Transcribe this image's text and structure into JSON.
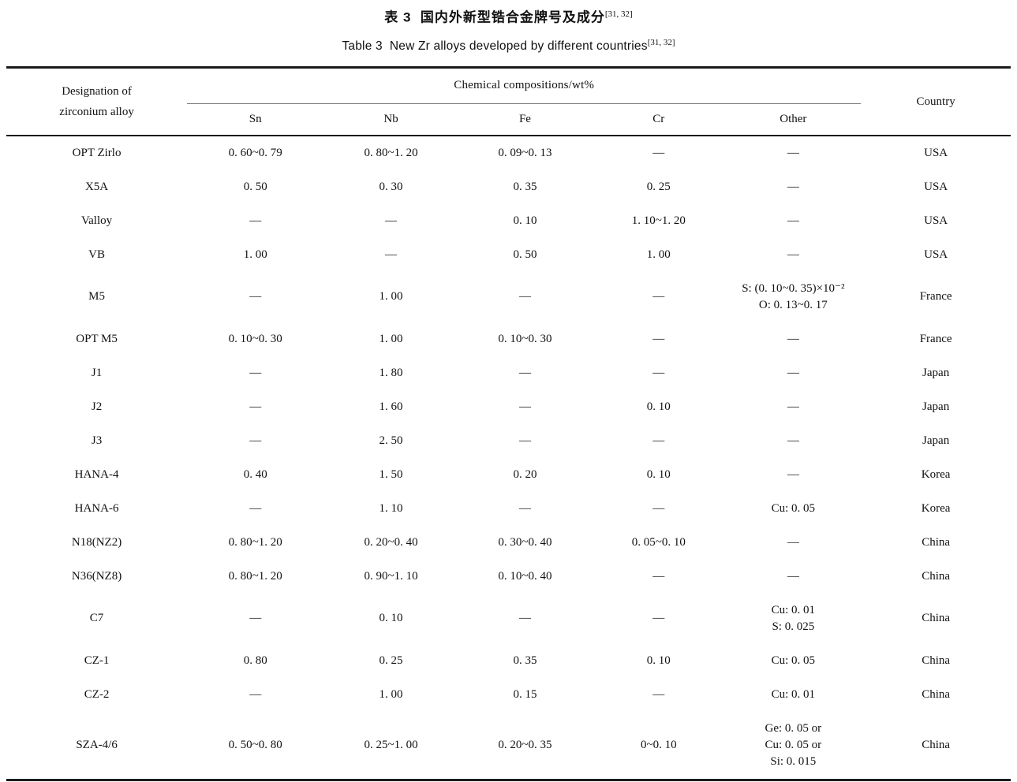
{
  "title": {
    "zh": "表 3  国内外新型锆合金牌号及成分",
    "en": "Table 3  New Zr alloys developed by different countries",
    "ref": "[31, 32]"
  },
  "table": {
    "header": {
      "designation": "Designation of\nzirconium alloy",
      "group": "Chemical compositions/wt%",
      "sub": [
        "Sn",
        "Nb",
        "Fe",
        "Cr",
        "Other"
      ],
      "country": "Country"
    },
    "rows": [
      {
        "designation": "OPT Zirlo",
        "sn": "0. 60~0. 79",
        "nb": "0. 80~1. 20",
        "fe": "0. 09~0. 13",
        "cr": "—",
        "other": "—",
        "country": "USA"
      },
      {
        "designation": "X5A",
        "sn": "0. 50",
        "nb": "0. 30",
        "fe": "0. 35",
        "cr": "0. 25",
        "other": "—",
        "country": "USA"
      },
      {
        "designation": "Valloy",
        "sn": "—",
        "nb": "—",
        "fe": "0. 10",
        "cr": "1. 10~1. 20",
        "other": "—",
        "country": "USA"
      },
      {
        "designation": "VB",
        "sn": "1. 00",
        "nb": "—",
        "fe": "0. 50",
        "cr": "1. 00",
        "other": "—",
        "country": "USA"
      },
      {
        "designation": "M5",
        "sn": "—",
        "nb": "1. 00",
        "fe": "—",
        "cr": "—",
        "other": "S: (0. 10~0. 35)×10⁻²\nO: 0. 13~0. 17",
        "country": "France"
      },
      {
        "designation": "OPT M5",
        "sn": "0. 10~0. 30",
        "nb": "1. 00",
        "fe": "0. 10~0. 30",
        "cr": "—",
        "other": "—",
        "country": "France"
      },
      {
        "designation": "J1",
        "sn": "—",
        "nb": "1. 80",
        "fe": "—",
        "cr": "—",
        "other": "—",
        "country": "Japan"
      },
      {
        "designation": "J2",
        "sn": "—",
        "nb": "1. 60",
        "fe": "—",
        "cr": "0. 10",
        "other": "—",
        "country": "Japan"
      },
      {
        "designation": "J3",
        "sn": "—",
        "nb": "2. 50",
        "fe": "—",
        "cr": "—",
        "other": "—",
        "country": "Japan"
      },
      {
        "designation": "HANA-4",
        "sn": "0. 40",
        "nb": "1. 50",
        "fe": "0. 20",
        "cr": "0. 10",
        "other": "—",
        "country": "Korea"
      },
      {
        "designation": "HANA-6",
        "sn": "—",
        "nb": "1. 10",
        "fe": "—",
        "cr": "—",
        "other": "Cu: 0. 05",
        "country": "Korea"
      },
      {
        "designation": "N18(NZ2)",
        "sn": "0. 80~1. 20",
        "nb": "0. 20~0. 40",
        "fe": "0. 30~0. 40",
        "cr": "0. 05~0. 10",
        "other": "—",
        "country": "China"
      },
      {
        "designation": "N36(NZ8)",
        "sn": "0. 80~1. 20",
        "nb": "0. 90~1. 10",
        "fe": "0. 10~0. 40",
        "cr": "—",
        "other": "—",
        "country": "China"
      },
      {
        "designation": "C7",
        "sn": "—",
        "nb": "0. 10",
        "fe": "—",
        "cr": "—",
        "other": "Cu: 0. 01\nS: 0. 025",
        "country": "China"
      },
      {
        "designation": "CZ-1",
        "sn": "0. 80",
        "nb": "0. 25",
        "fe": "0. 35",
        "cr": "0. 10",
        "other": "Cu: 0. 05",
        "country": "China"
      },
      {
        "designation": "CZ-2",
        "sn": "—",
        "nb": "1. 00",
        "fe": "0. 15",
        "cr": "—",
        "other": "Cu: 0. 01",
        "country": "China"
      },
      {
        "designation": "SZA-4/6",
        "sn": "0. 50~0. 80",
        "nb": "0. 25~1. 00",
        "fe": "0. 20~0. 35",
        "cr": "0~0. 10",
        "other": "Ge: 0. 05 or\nCu: 0. 05 or\nSi: 0. 015",
        "country": "China"
      }
    ]
  }
}
